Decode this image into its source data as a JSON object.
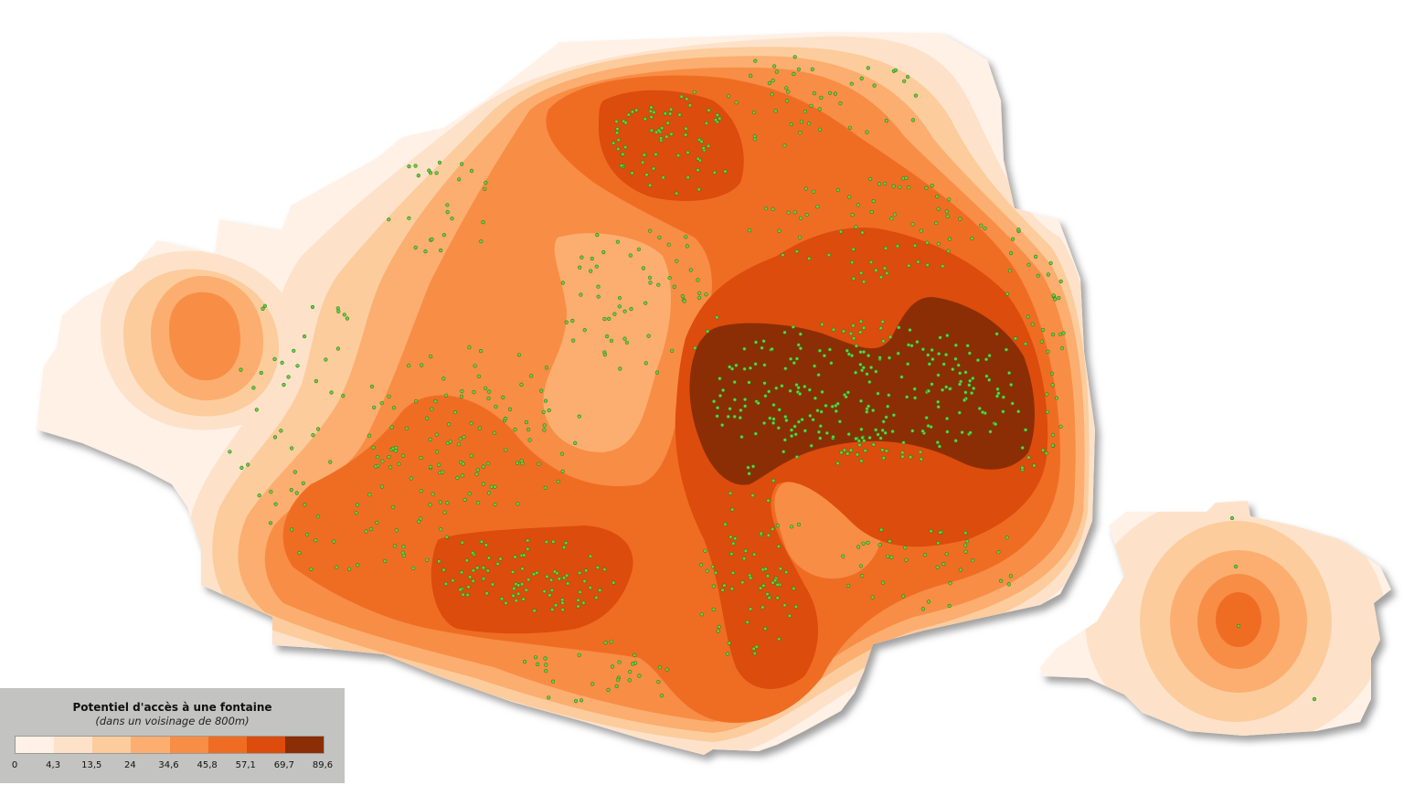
{
  "legend": {
    "title": "Potentiel d'accès à une fontaine",
    "subtitle": "(dans un voisinage de 800m)",
    "classes": [
      {
        "from": "0",
        "to": "4,3",
        "color": "#fff1e6"
      },
      {
        "from": "4,3",
        "to": "13,5",
        "color": "#fde2c9"
      },
      {
        "from": "13,5",
        "to": "24",
        "color": "#fccc9d"
      },
      {
        "from": "24",
        "to": "34,6",
        "color": "#fbae6f"
      },
      {
        "from": "34,6",
        "to": "45,8",
        "color": "#f88d45"
      },
      {
        "from": "45,8",
        "to": "57,1",
        "color": "#ef6d23"
      },
      {
        "from": "57,1",
        "to": "69,7",
        "color": "#dc4c0c"
      },
      {
        "from": "69,7",
        "to": "89,6",
        "color": "#8b2e05"
      }
    ],
    "breaks": [
      "0",
      "4,3",
      "13,5",
      "24",
      "34,6",
      "45,8",
      "57,1",
      "69,7",
      "89,6"
    ]
  },
  "map": {
    "layers": [
      "fountain-potential-surface",
      "fountain-points"
    ],
    "point_color": "#69d145",
    "point_stroke": "#2e7d12",
    "shadow_color": "#9a9a9a"
  }
}
